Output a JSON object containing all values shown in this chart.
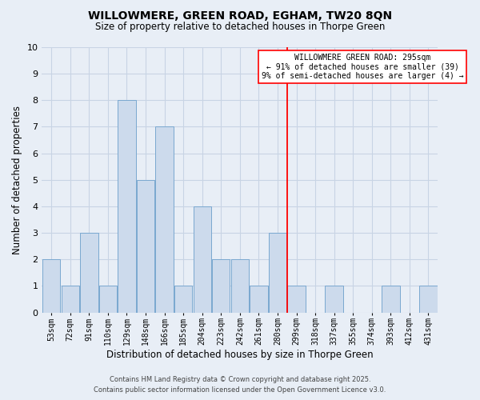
{
  "title": "WILLOWMERE, GREEN ROAD, EGHAM, TW20 8QN",
  "subtitle": "Size of property relative to detached houses in Thorpe Green",
  "xlabel": "Distribution of detached houses by size in Thorpe Green",
  "ylabel": "Number of detached properties",
  "bar_labels": [
    "53sqm",
    "72sqm",
    "91sqm",
    "110sqm",
    "129sqm",
    "148sqm",
    "166sqm",
    "185sqm",
    "204sqm",
    "223sqm",
    "242sqm",
    "261sqm",
    "280sqm",
    "299sqm",
    "318sqm",
    "337sqm",
    "355sqm",
    "374sqm",
    "393sqm",
    "412sqm",
    "431sqm"
  ],
  "bar_values": [
    2,
    1,
    3,
    1,
    8,
    5,
    7,
    1,
    4,
    2,
    2,
    1,
    3,
    1,
    0,
    1,
    0,
    0,
    1,
    0,
    1
  ],
  "bar_color": "#ccdaec",
  "bar_edgecolor": "#7aa8d0",
  "grid_color": "#c8d4e4",
  "background_color": "#e8eef6",
  "ylim": [
    0,
    10
  ],
  "yticks": [
    0,
    1,
    2,
    3,
    4,
    5,
    6,
    7,
    8,
    9,
    10
  ],
  "vline_index": 12.5,
  "vline_color": "red",
  "annotation_title": "WILLOWMERE GREEN ROAD: 295sqm",
  "annotation_line1": "← 91% of detached houses are smaller (39)",
  "annotation_line2": "9% of semi-detached houses are larger (4) →",
  "footer_line1": "Contains HM Land Registry data © Crown copyright and database right 2025.",
  "footer_line2": "Contains public sector information licensed under the Open Government Licence v3.0."
}
